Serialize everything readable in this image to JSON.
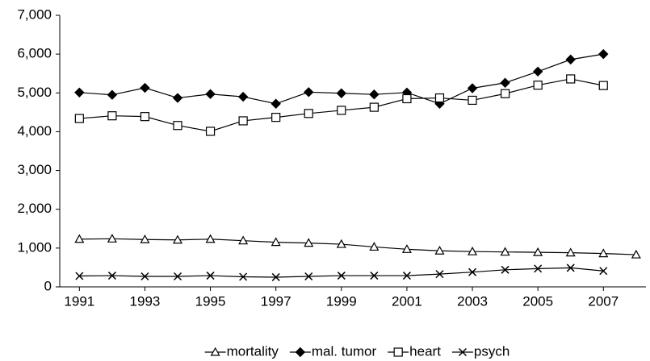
{
  "chart_data": {
    "type": "line",
    "x": [
      1991,
      1992,
      1993,
      1994,
      1995,
      1996,
      1997,
      1998,
      1999,
      2000,
      2001,
      2002,
      2003,
      2004,
      2005,
      2006,
      2007,
      2008
    ],
    "xlim": [
      1990.4,
      2008.3
    ],
    "xticks": [
      1991,
      1993,
      1995,
      1997,
      1999,
      2001,
      2003,
      2005,
      2007
    ],
    "ylim": [
      0,
      7000
    ],
    "yticks": [
      0,
      {
        "value": 1000,
        "label": "1,000"
      },
      {
        "value": 2000,
        "label": "2,000"
      },
      {
        "value": 3000,
        "label": "3,000"
      },
      {
        "value": 4000,
        "label": "4,000"
      },
      {
        "value": 5000,
        "label": "5,000"
      },
      {
        "value": 6000,
        "label": "6,000"
      },
      {
        "value": 7000,
        "label": "7,000"
      }
    ],
    "legend": "bottom",
    "series": [
      {
        "name": "mortality",
        "color": "#000000",
        "marker": "triangle-open",
        "values": [
          1230,
          1240,
          1220,
          1210,
          1230,
          1190,
          1150,
          1130,
          1100,
          1030,
          970,
          930,
          910,
          900,
          890,
          880,
          860,
          830
        ]
      },
      {
        "name": "mal. tumor",
        "color": "#000000",
        "marker": "diamond-filled",
        "values": [
          5010,
          4950,
          5130,
          4870,
          4970,
          4900,
          4720,
          5020,
          4990,
          4960,
          5010,
          4720,
          5120,
          5260,
          5550,
          5860,
          6000,
          null
        ]
      },
      {
        "name": "heart",
        "color": "#000000",
        "marker": "square-open",
        "values": [
          4340,
          4410,
          4390,
          4160,
          4010,
          4280,
          4370,
          4470,
          4550,
          4630,
          4850,
          4870,
          4810,
          4980,
          5200,
          5360,
          5190,
          null
        ]
      },
      {
        "name": "psych",
        "color": "#000000",
        "marker": "cross",
        "values": [
          280,
          290,
          270,
          270,
          290,
          260,
          250,
          270,
          290,
          290,
          290,
          330,
          380,
          440,
          470,
          490,
          410,
          null
        ]
      }
    ]
  }
}
